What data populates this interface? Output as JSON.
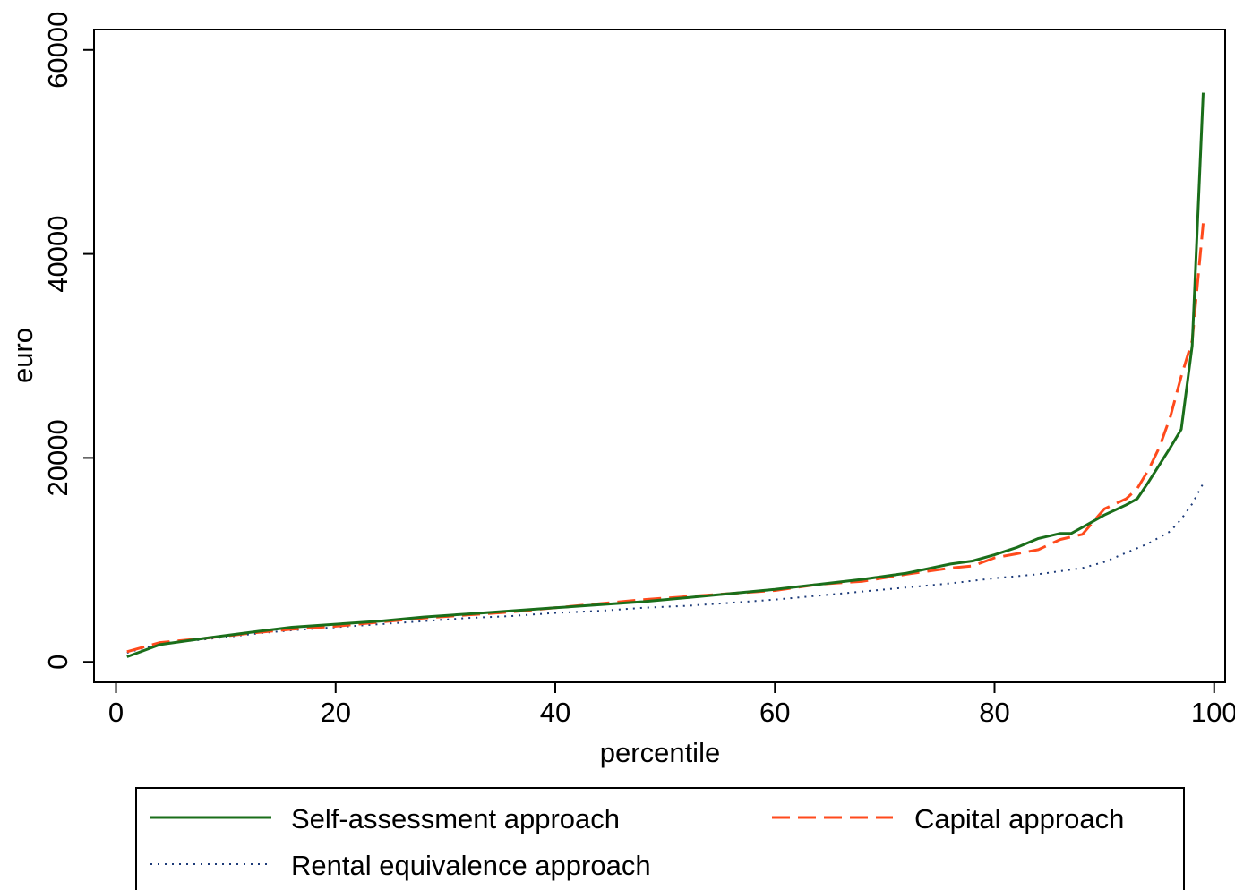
{
  "chart_data": {
    "type": "line",
    "xlabel": "percentile",
    "ylabel": "euro",
    "xlim": [
      -2,
      101
    ],
    "ylim": [
      -2000,
      62000
    ],
    "xticks": [
      0,
      20,
      40,
      60,
      80,
      100
    ],
    "yticks": [
      0,
      20000,
      40000,
      60000
    ],
    "grid": false,
    "legend_placement": "bottom",
    "series": [
      {
        "name": "Self-assessment approach",
        "color": "#1a6e1a",
        "dash": "solid",
        "x": [
          1,
          4,
          8,
          13,
          16,
          20,
          24,
          28,
          32,
          36,
          40,
          44,
          48,
          52,
          56,
          60,
          64,
          68,
          72,
          76,
          78,
          80,
          82,
          84,
          86,
          87,
          88,
          90,
          91,
          92,
          93,
          94,
          95,
          96,
          97,
          98,
          99
        ],
        "y": [
          500,
          1700,
          2300,
          3000,
          3400,
          3700,
          4000,
          4400,
          4700,
          5000,
          5300,
          5600,
          5900,
          6300,
          6700,
          7100,
          7600,
          8100,
          8700,
          9600,
          9900,
          10500,
          11200,
          12100,
          12600,
          12600,
          13200,
          14400,
          14900,
          15400,
          16000,
          17600,
          19300,
          21000,
          22800,
          31000,
          55800
        ]
      },
      {
        "name": "Capital approach",
        "color": "#ff4a1c",
        "dash": "dashed",
        "x": [
          1,
          4,
          8,
          13,
          16,
          20,
          24,
          28,
          32,
          36,
          40,
          44,
          48,
          52,
          56,
          60,
          64,
          68,
          72,
          76,
          78,
          80,
          82,
          84,
          86,
          88,
          90,
          92,
          93,
          94,
          95,
          96,
          97,
          98,
          99
        ],
        "y": [
          1000,
          1900,
          2300,
          2900,
          3200,
          3500,
          3900,
          4300,
          4600,
          4900,
          5300,
          5700,
          6100,
          6400,
          6700,
          7000,
          7600,
          7900,
          8600,
          9200,
          9400,
          10200,
          10600,
          11000,
          12000,
          12500,
          15000,
          16000,
          17000,
          18800,
          21000,
          24000,
          28000,
          31500,
          43000
        ]
      },
      {
        "name": "Rental equivalence approach",
        "color": "#1c3a78",
        "dash": "dotted",
        "x": [
          1,
          4,
          8,
          13,
          16,
          20,
          24,
          28,
          32,
          36,
          40,
          44,
          48,
          52,
          56,
          60,
          64,
          68,
          72,
          76,
          80,
          84,
          88,
          90,
          92,
          94,
          96,
          97,
          98,
          99
        ],
        "y": [
          900,
          1800,
          2200,
          2800,
          3100,
          3400,
          3700,
          4000,
          4300,
          4500,
          4800,
          5000,
          5300,
          5500,
          5800,
          6100,
          6500,
          6900,
          7300,
          7700,
          8200,
          8600,
          9200,
          9800,
          10700,
          11600,
          12800,
          14000,
          15500,
          17500
        ]
      }
    ]
  }
}
